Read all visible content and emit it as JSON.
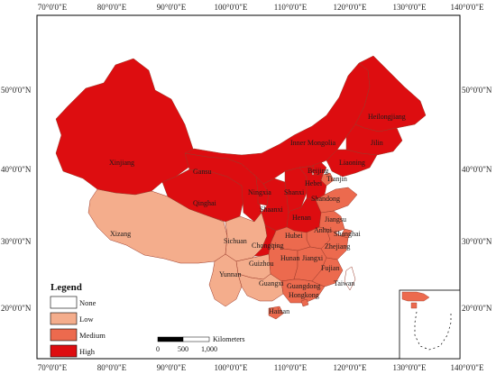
{
  "colors": {
    "none": "#ffffff",
    "low": "#f4ad8c",
    "medium": "#ec6a4e",
    "high": "#dd0d10",
    "border": "#9a3a2a",
    "frame": "#000000"
  },
  "axes": {
    "top_labels": [
      "70°0'0\"E",
      "80°0'0\"E",
      "90°0'0\"E",
      "100°0'0\"E",
      "110°0'0\"E",
      "120°0'0\"E",
      "130°0'0\"E",
      "140°0'0\"E"
    ],
    "bottom_labels": [
      "70°0'0\"E",
      "80°0'0\"E",
      "90°0'0\"E",
      "100°0'0\"E",
      "110°0'0\"E",
      "120°0'0\"E",
      "130°0'0\"E",
      "140°0'0\"E"
    ],
    "left_labels": [
      "50°0'0\"N",
      "40°0'0\"N",
      "30°0'0\"N",
      "20°0'0\"N"
    ],
    "right_labels": [
      "50°0'0\"N",
      "40°0'0\"N",
      "30°0'0\"N",
      "20°0'0\"N"
    ]
  },
  "provinces": [
    {
      "name": "Heilongjiang",
      "level": "high"
    },
    {
      "name": "Jilin",
      "level": "high"
    },
    {
      "name": "Liaoning",
      "level": "high"
    },
    {
      "name": "Inner Mongolia",
      "level": "high"
    },
    {
      "name": "Xinjiang",
      "level": "high"
    },
    {
      "name": "Gansu",
      "level": "high"
    },
    {
      "name": "Qinghai",
      "level": "high"
    },
    {
      "name": "Ningxia",
      "level": "high"
    },
    {
      "name": "Shaanxi",
      "level": "high"
    },
    {
      "name": "Shanxi",
      "level": "high"
    },
    {
      "name": "Beijing",
      "level": "high"
    },
    {
      "name": "Tianjin",
      "level": "medium"
    },
    {
      "name": "Hebei",
      "level": "high"
    },
    {
      "name": "Shandong",
      "level": "medium"
    },
    {
      "name": "Henan",
      "level": "high"
    },
    {
      "name": "Jiangsu",
      "level": "medium"
    },
    {
      "name": "Anhui",
      "level": "medium"
    },
    {
      "name": "Shanghai",
      "level": "medium"
    },
    {
      "name": "Hubei",
      "level": "medium"
    },
    {
      "name": "Zhejiang",
      "level": "medium"
    },
    {
      "name": "Xizang",
      "level": "low"
    },
    {
      "name": "Sichuan",
      "level": "low"
    },
    {
      "name": "Chongqing",
      "level": "high"
    },
    {
      "name": "Hunan",
      "level": "medium"
    },
    {
      "name": "Jiangxi",
      "level": "medium"
    },
    {
      "name": "Fujian",
      "level": "medium"
    },
    {
      "name": "Guizhou",
      "level": "low"
    },
    {
      "name": "Yunnan",
      "level": "low"
    },
    {
      "name": "Guangxi",
      "level": "low"
    },
    {
      "name": "Guangdong",
      "level": "medium"
    },
    {
      "name": "Hongkong",
      "level": "medium"
    },
    {
      "name": "Taiwan",
      "level": "none"
    },
    {
      "name": "Hainan",
      "level": "medium"
    }
  ],
  "legend": {
    "title": "Legend",
    "items": [
      {
        "label": "None",
        "level": "none"
      },
      {
        "label": "Low",
        "level": "low"
      },
      {
        "label": "Medium",
        "level": "medium"
      },
      {
        "label": "High",
        "level": "high"
      }
    ]
  },
  "scale_bar": {
    "unit": "Kilometers",
    "ticks": [
      "0",
      "500",
      "1,000"
    ]
  }
}
